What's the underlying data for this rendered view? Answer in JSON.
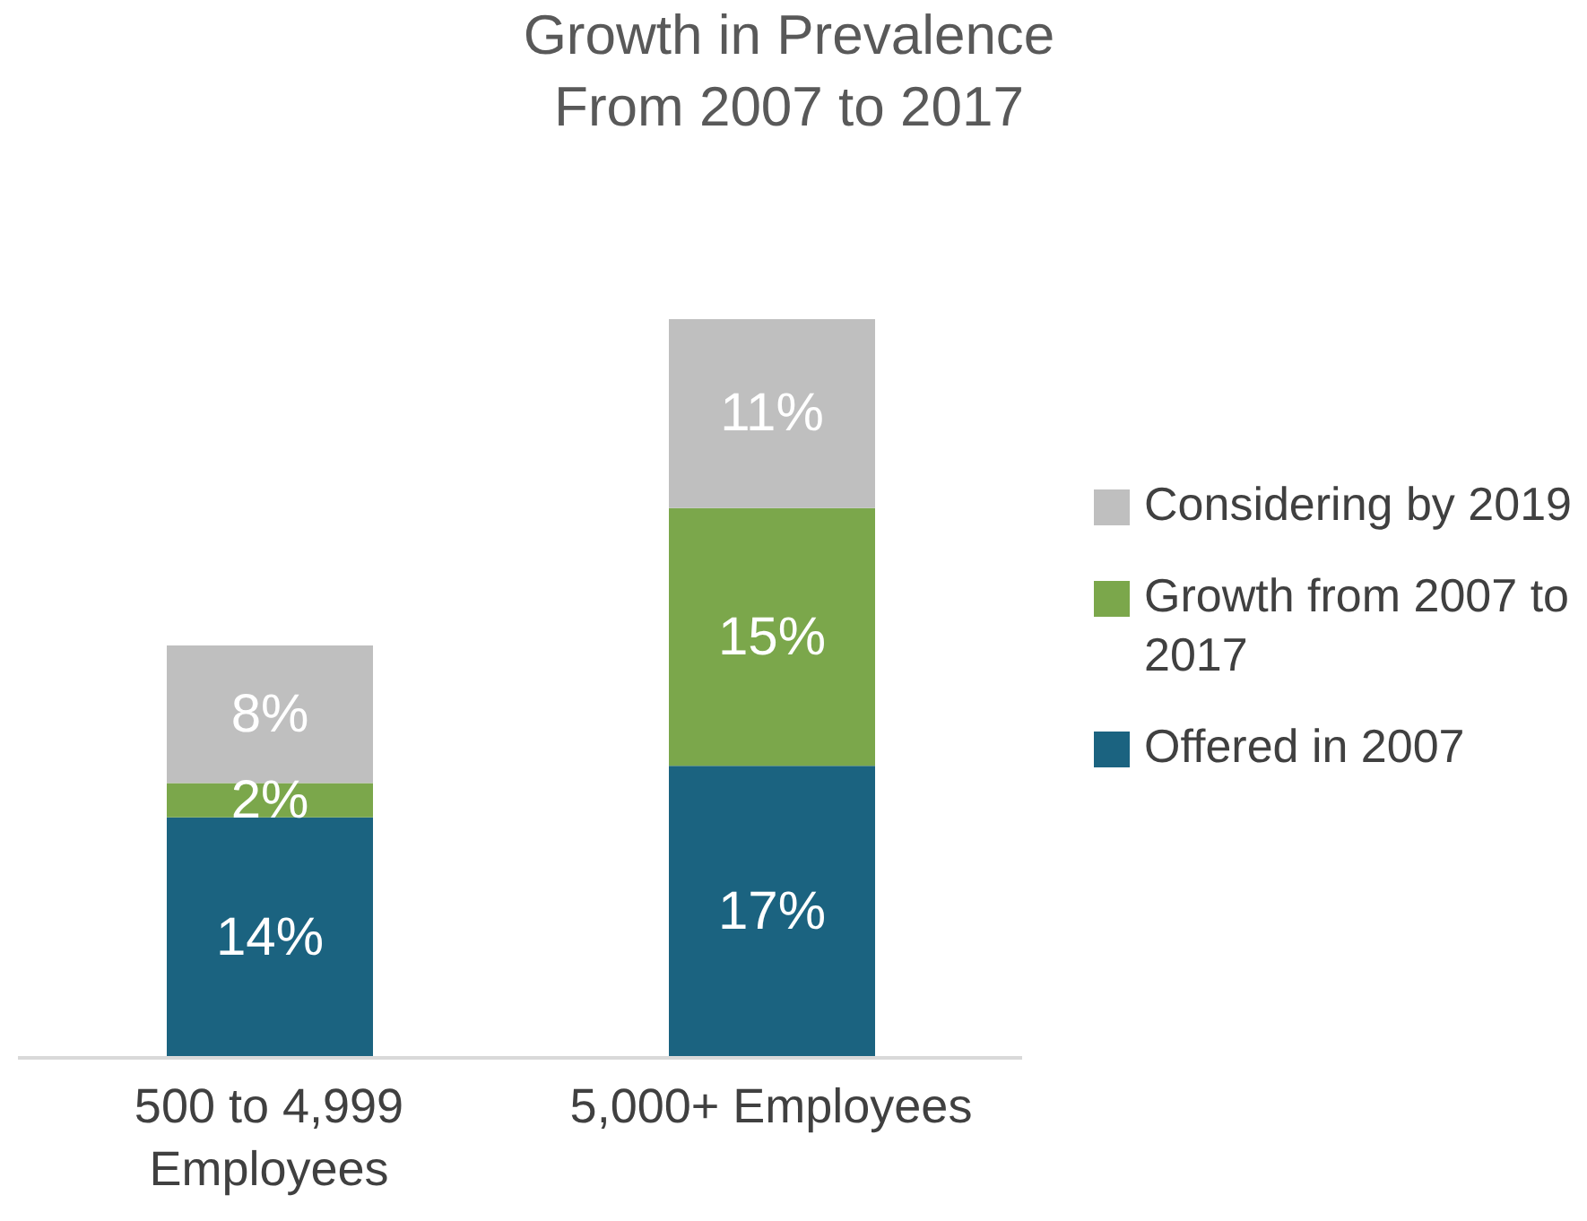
{
  "chart_data": {
    "type": "bar",
    "title": "Growth in Prevalence From 2007 to 2017",
    "stacked": true,
    "categories": [
      "500 to 4,999 Employees",
      "5,000+ Employees"
    ],
    "series": [
      {
        "name": "Offered in 2007",
        "color": "#1b6380",
        "values": [
          14,
          17
        ],
        "value_labels": [
          "14%",
          "17%"
        ]
      },
      {
        "name": "Growth from 2007 to 2017",
        "color": "#7ba74b",
        "values": [
          2,
          15
        ],
        "value_labels": [
          "2%",
          "15%"
        ]
      },
      {
        "name": "Considering by 2019",
        "color": "#bfbfbf",
        "values": [
          8,
          11
        ],
        "value_labels": [
          "8%",
          "11%"
        ]
      }
    ],
    "legend": "right"
  }
}
